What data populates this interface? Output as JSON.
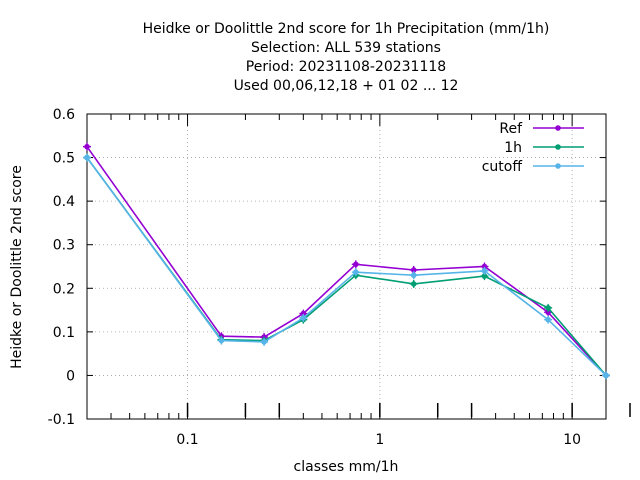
{
  "chart_data": {
    "type": "line",
    "title_lines": [
      "Heidke or Doolittle 2nd score  for 1h Precipitation (mm/1h)",
      "Selection: ALL    539 stations",
      "Period: 20231108-20231118",
      "Used  00,06,12,18 + 01 02 ... 12"
    ],
    "xlabel": "classes mm/1h",
    "ylabel": "Heidke or Doolittle 2nd score",
    "x_scale": "log",
    "xlim": [
      0.03,
      15
    ],
    "ylim": [
      -0.1,
      0.6
    ],
    "x_tick_labels": [
      "0.1",
      "1",
      "10"
    ],
    "y_tick_labels": [
      "-0.1",
      "0",
      "0.1",
      "0.2",
      "0.3",
      "0.4",
      "0.5",
      "0.6"
    ],
    "grid": true,
    "legend_position": "top-right",
    "x": [
      0.03,
      0.15,
      0.25,
      0.4,
      0.75,
      1.5,
      3.5,
      7.5,
      15
    ],
    "series": [
      {
        "name": "Ref",
        "color": "#9400d3",
        "values": [
          0.525,
          0.09,
          0.088,
          0.142,
          0.255,
          0.242,
          0.25,
          0.145,
          0.0
        ]
      },
      {
        "name": "1h",
        "color": "#009e73",
        "values": [
          0.5,
          0.082,
          0.08,
          0.128,
          0.23,
          0.21,
          0.228,
          0.155,
          0.0
        ]
      },
      {
        "name": "cutoff",
        "color": "#56b4e9",
        "values": [
          0.5,
          0.08,
          0.077,
          0.132,
          0.237,
          0.23,
          0.24,
          0.128,
          0.0
        ]
      }
    ]
  }
}
